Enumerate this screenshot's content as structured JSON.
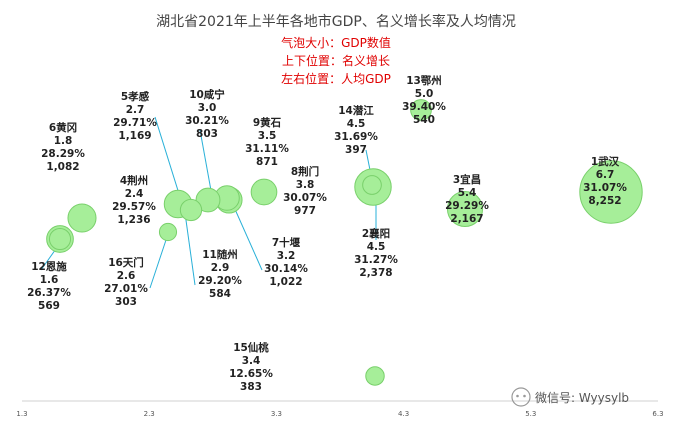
{
  "chart_data": {
    "type": "scatter",
    "title": "湖北省2021年上半年各地市GDP、名义增长率及人均情况",
    "legend_notes": [
      "气泡大小：GDP数值",
      "上下位置：名义增长",
      "左右位置：人均GDP"
    ],
    "x_ticks": [
      "1.3",
      "2.3",
      "3.3",
      "4.3",
      "5.3",
      "6.3"
    ],
    "xlim": [
      1.3,
      6.3
    ],
    "grid": false,
    "watermark": "微信号: Wyysylb",
    "points": [
      {
        "name": "1武汉",
        "per_capita": "6.7",
        "growth": "31.07%",
        "gdp": "8,252"
      },
      {
        "name": "2襄阳",
        "per_capita": "4.5",
        "growth": "31.27%",
        "gdp": "2,378"
      },
      {
        "name": "3宜昌",
        "per_capita": "5.4",
        "growth": "29.29%",
        "gdp": "2,167"
      },
      {
        "name": "4荆州",
        "per_capita": "2.4",
        "growth": "29.57%",
        "gdp": "1,236"
      },
      {
        "name": "5孝感",
        "per_capita": "2.7",
        "growth": "29.71%",
        "gdp": "1,169"
      },
      {
        "name": "6黄冈",
        "per_capita": "1.8",
        "growth": "28.29%",
        "gdp": "1,082"
      },
      {
        "name": "7十堰",
        "per_capita": "3.2",
        "growth": "30.14%",
        "gdp": "1,022"
      },
      {
        "name": "8荆门",
        "per_capita": "3.8",
        "growth": "30.07%",
        "gdp": "977"
      },
      {
        "name": "9黄石",
        "per_capita": "3.5",
        "growth": "31.11%",
        "gdp": "871"
      },
      {
        "name": "10咸宁",
        "per_capita": "3.0",
        "growth": "30.21%",
        "gdp": "803"
      },
      {
        "name": "11随州",
        "per_capita": "2.9",
        "growth": "29.20%",
        "gdp": "584"
      },
      {
        "name": "12恩施",
        "per_capita": "1.6",
        "growth": "26.37%",
        "gdp": "569"
      },
      {
        "name": "13鄂州",
        "per_capita": "5.0",
        "growth": "39.40%",
        "gdp": "540"
      },
      {
        "name": "14潜江",
        "per_capita": "4.5",
        "growth": "31.69%",
        "gdp": "397"
      },
      {
        "name": "15仙桃",
        "per_capita": "3.4",
        "growth": "12.65%",
        "gdp": "383"
      },
      {
        "name": "16天门",
        "per_capita": "2.6",
        "growth": "27.01%",
        "gdp": "303"
      }
    ]
  }
}
